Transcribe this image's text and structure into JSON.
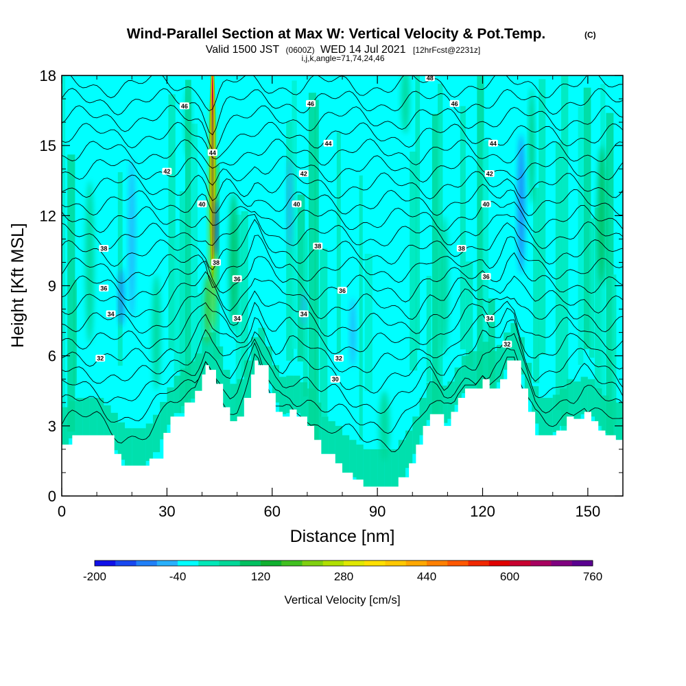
{
  "title": {
    "main": "Wind-Parallel Section at Max W: Vertical Velocity & Pot.Temp.",
    "copyright": "(C)",
    "line2_a": "Valid 1500 JST",
    "line2_b": "(0600Z)",
    "line2_c": "WED 14 Jul 2021",
    "line2_d": "[12hrFcst@2231z]",
    "line3": "i,j,k,angle=71,74,24,46"
  },
  "chart_data": {
    "type": "heatmap",
    "xlabel": "Distance [nm]",
    "ylabel": "Height [Kft MSL]",
    "xlim": [
      0,
      160
    ],
    "ylim": [
      0,
      18
    ],
    "x_ticks": [
      "0",
      "30",
      "60",
      "90",
      "120",
      "150"
    ],
    "x_tick_values": [
      0,
      30,
      60,
      90,
      120,
      150
    ],
    "y_ticks": [
      "0",
      "3",
      "6",
      "9",
      "12",
      "15",
      "18"
    ],
    "y_tick_values": [
      0,
      3,
      6,
      9,
      12,
      15,
      18
    ],
    "colorbar": {
      "label": "Vertical Velocity [cm/s]",
      "tick_labels": [
        "-200",
        "-40",
        "120",
        "280",
        "440",
        "600",
        "760"
      ],
      "tick_values": [
        -200,
        -40,
        120,
        280,
        440,
        600,
        760
      ],
      "colors": [
        "#1010e8",
        "#1848f0",
        "#2080f8",
        "#28b0fc",
        "#00ffff",
        "#00e8b8",
        "#00d898",
        "#00c060",
        "#10b030",
        "#40c020",
        "#80d010",
        "#b0e000",
        "#e0e800",
        "#ffe000",
        "#ffc800",
        "#ffa800",
        "#ff8000",
        "#ff5800",
        "#f02800",
        "#e00000",
        "#c80030",
        "#a80060",
        "#800080",
        "#5a0090"
      ]
    },
    "terrain_height_kft": [
      [
        0,
        2.2
      ],
      [
        3,
        2.6
      ],
      [
        10,
        2.6
      ],
      [
        15,
        1.8
      ],
      [
        17,
        1.3
      ],
      [
        22,
        1.3
      ],
      [
        25,
        1.6
      ],
      [
        29,
        2.7
      ],
      [
        31,
        3.4
      ],
      [
        35,
        4.0
      ],
      [
        38,
        4.5
      ],
      [
        40,
        5.2
      ],
      [
        41,
        5.6
      ],
      [
        42,
        5.4
      ],
      [
        44,
        4.8
      ],
      [
        46,
        3.8
      ],
      [
        48,
        3.2
      ],
      [
        50,
        3.4
      ],
      [
        52,
        4.2
      ],
      [
        54,
        5.2
      ],
      [
        55,
        5.8
      ],
      [
        56,
        5.6
      ],
      [
        59,
        4.4
      ],
      [
        61,
        3.6
      ],
      [
        63,
        3.4
      ],
      [
        65,
        3.7
      ],
      [
        67,
        3.4
      ],
      [
        70,
        3.0
      ],
      [
        72,
        2.4
      ],
      [
        74,
        1.8
      ],
      [
        78,
        1.4
      ],
      [
        80,
        1.0
      ],
      [
        83,
        0.7
      ],
      [
        86,
        0.4
      ],
      [
        94,
        0.4
      ],
      [
        96,
        0.8
      ],
      [
        99,
        1.4
      ],
      [
        101,
        2.2
      ],
      [
        103,
        3.0
      ],
      [
        105,
        3.5
      ],
      [
        109,
        3.0
      ],
      [
        111,
        3.6
      ],
      [
        113,
        4.2
      ],
      [
        115,
        4.6
      ],
      [
        118,
        4.6
      ],
      [
        120,
        5.0
      ],
      [
        122,
        4.6
      ],
      [
        125,
        5.0
      ],
      [
        127,
        5.8
      ],
      [
        129,
        5.8
      ],
      [
        131,
        4.6
      ],
      [
        133,
        3.6
      ],
      [
        135,
        2.6
      ],
      [
        138,
        2.6
      ],
      [
        141,
        2.8
      ],
      [
        144,
        3.4
      ],
      [
        146,
        3.3
      ],
      [
        149,
        3.6
      ],
      [
        151,
        3.2
      ],
      [
        153,
        2.8
      ],
      [
        155,
        2.6
      ],
      [
        158,
        2.4
      ],
      [
        160,
        2.0
      ]
    ],
    "theta_contours": [
      {
        "label": "30",
        "base": 4.2,
        "lx": 78,
        "ly": 5.0
      },
      {
        "label": "32",
        "base": 5.8,
        "lx": 79,
        "ly": 5.9
      },
      {
        "label": "32",
        "base": 5.8,
        "lx": 11,
        "ly": 5.9
      },
      {
        "label": "32",
        "base": 5.8,
        "lx": 127,
        "ly": 6.5
      },
      {
        "label": "34",
        "base": 7.3,
        "lx": 14,
        "ly": 7.8
      },
      {
        "label": "34",
        "base": 7.3,
        "lx": 50,
        "ly": 7.6
      },
      {
        "label": "34",
        "base": 7.3,
        "lx": 69,
        "ly": 7.8
      },
      {
        "label": "34",
        "base": 7.3,
        "lx": 122,
        "ly": 7.6
      },
      {
        "label": "36",
        "base": 8.7,
        "lx": 12,
        "ly": 8.9
      },
      {
        "label": "36",
        "base": 8.7,
        "lx": 50,
        "ly": 9.3
      },
      {
        "label": "36",
        "base": 8.7,
        "lx": 80,
        "ly": 8.8
      },
      {
        "label": "36",
        "base": 8.7,
        "lx": 121,
        "ly": 9.4
      },
      {
        "label": "38",
        "base": 10.4,
        "lx": 12,
        "ly": 10.6
      },
      {
        "label": "38",
        "base": 10.4,
        "lx": 44,
        "ly": 10.0
      },
      {
        "label": "38",
        "base": 10.4,
        "lx": 73,
        "ly": 10.7
      },
      {
        "label": "38",
        "base": 10.4,
        "lx": 114,
        "ly": 10.6
      },
      {
        "label": "40",
        "base": 12.4,
        "lx": 40,
        "ly": 12.5
      },
      {
        "label": "40",
        "base": 12.4,
        "lx": 67,
        "ly": 12.5
      },
      {
        "label": "40",
        "base": 12.4,
        "lx": 121,
        "ly": 12.5
      },
      {
        "label": "42",
        "base": 13.7,
        "lx": 30,
        "ly": 13.9
      },
      {
        "label": "42",
        "base": 13.7,
        "lx": 69,
        "ly": 13.8
      },
      {
        "label": "42",
        "base": 13.7,
        "lx": 122,
        "ly": 13.8
      },
      {
        "label": "44",
        "base": 15.1,
        "lx": 43,
        "ly": 14.7
      },
      {
        "label": "44",
        "base": 15.1,
        "lx": 76,
        "ly": 15.1
      },
      {
        "label": "44",
        "base": 15.1,
        "lx": 123,
        "ly": 15.1
      },
      {
        "label": "46",
        "base": 16.8,
        "lx": 35,
        "ly": 16.7
      },
      {
        "label": "46",
        "base": 16.8,
        "lx": 71,
        "ly": 16.8
      },
      {
        "label": "46",
        "base": 16.8,
        "lx": 112,
        "ly": 16.8
      },
      {
        "label": "48",
        "base": 17.8,
        "lx": 105,
        "ly": 17.9
      }
    ],
    "velocity_features_cm_s": [
      {
        "x": 43,
        "y": 14,
        "w": 0.8,
        "h": 9,
        "value": 700
      },
      {
        "x": 43,
        "y": 12,
        "w": 2.0,
        "h": 10,
        "value": 200
      },
      {
        "x": 41.5,
        "y": 8,
        "w": 1.8,
        "h": 3,
        "value": 160
      },
      {
        "x": 20,
        "y": 11,
        "w": 1.8,
        "h": 7,
        "value": -80
      },
      {
        "x": 17,
        "y": 8.5,
        "w": 1.6,
        "h": 2.5,
        "value": -100
      },
      {
        "x": 44,
        "y": 11.5,
        "w": 0.8,
        "h": 2.5,
        "value": -200
      },
      {
        "x": 65,
        "y": 12.5,
        "w": 1.5,
        "h": 4,
        "value": -60
      },
      {
        "x": 69,
        "y": 8,
        "w": 1.2,
        "h": 1.5,
        "value": -80
      },
      {
        "x": 83,
        "y": 7,
        "w": 1.6,
        "h": 3,
        "value": -60
      },
      {
        "x": 131,
        "y": 12.5,
        "w": 2.0,
        "h": 6,
        "value": -120
      },
      {
        "x": 134,
        "y": 15,
        "w": 1.4,
        "h": 5,
        "value": 110
      },
      {
        "x": 49,
        "y": 10,
        "w": 2.5,
        "h": 6,
        "value": 90
      },
      {
        "x": 92,
        "y": 3,
        "w": 3,
        "h": 3,
        "value": 70
      },
      {
        "x": 109,
        "y": 9,
        "w": 2.5,
        "h": 6,
        "value": 70
      },
      {
        "x": 154,
        "y": 12,
        "w": 2.5,
        "h": 6,
        "value": 80
      },
      {
        "x": 8,
        "y": 10,
        "w": 2.5,
        "h": 7,
        "value": 70
      },
      {
        "x": 27,
        "y": 7,
        "w": 2.5,
        "h": 5,
        "value": 60
      },
      {
        "x": 36,
        "y": 16,
        "w": 2.0,
        "h": 3,
        "value": 70
      },
      {
        "x": 98,
        "y": 17,
        "w": 2.5,
        "h": 3,
        "value": 60
      }
    ]
  }
}
